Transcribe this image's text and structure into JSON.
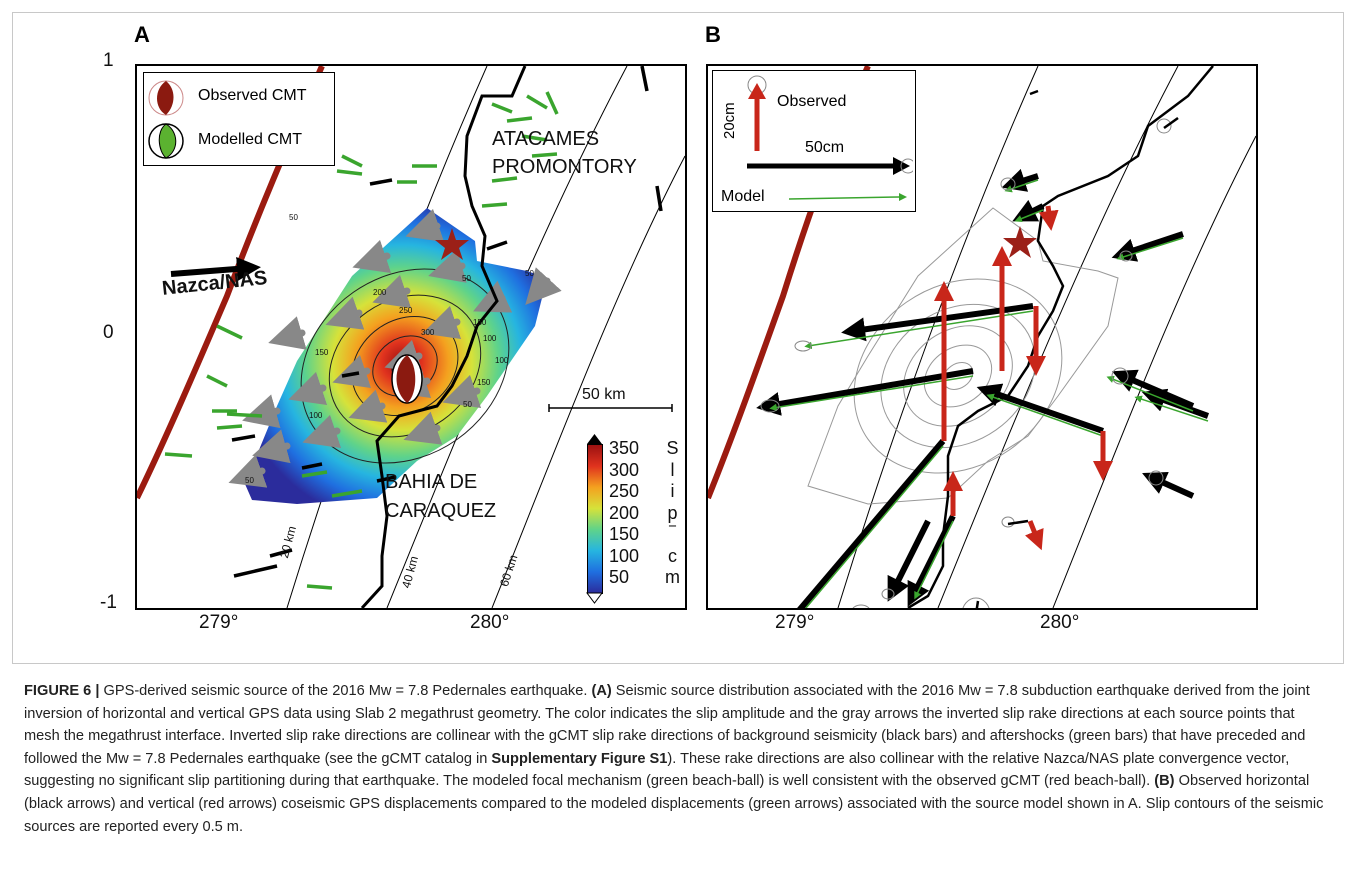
{
  "figure": {
    "panel_a": {
      "letter": "A",
      "y_ticks": [
        "1",
        "0",
        "-1"
      ],
      "x_ticks": [
        "279°",
        "280°"
      ],
      "legend": {
        "observed": "Observed CMT",
        "modelled": "Modelled CMT"
      },
      "labels": {
        "atacames_1": "ATACAMES",
        "atacames_2": "PROMONTORY",
        "nazca": "Nazca/NAS",
        "bahia_1": "BAHIA DE",
        "bahia_2": "CARAQUEZ",
        "scale": "50 km",
        "depth_20": "20 km",
        "depth_40": "40 km",
        "depth_60": "60 km"
      },
      "contour_labels": [
        "50",
        "50",
        "50",
        "50",
        "100",
        "150",
        "200",
        "250",
        "300",
        "150",
        "100",
        "150",
        "100",
        "50"
      ],
      "colorbar": {
        "ticks": [
          "350",
          "300",
          "250",
          "200",
          "150",
          "100",
          "50"
        ],
        "title_letters": [
          "S",
          "l",
          "i",
          "p",
          "",
          "c",
          "m"
        ],
        "colors": [
          "#2b2c9c",
          "#1f6fe0",
          "#26b5e0",
          "#5fd38a",
          "#d6e23a",
          "#f4a11f",
          "#e0321e",
          "#9b1111"
        ]
      }
    },
    "panel_b": {
      "letter": "B",
      "x_ticks": [
        "279°",
        "280°"
      ],
      "legend": {
        "observed": "Observed",
        "scale_20": "20cm",
        "scale_50": "50cm",
        "model": "Model"
      }
    },
    "colors": {
      "trench": "#9b1b10",
      "green_bar": "#3aa52e",
      "observed_cmt": "#8b1a10",
      "modelled_cmt": "#5bb230"
    }
  },
  "caption": {
    "label": "FIGURE 6 |",
    "p1": " GPS-derived seismic source of the 2016 Mw = 7.8 Pedernales earthquake. ",
    "a_tag": "(A)",
    "p2": " Seismic source distribution associated with the 2016 Mw = 7.8 subduction earthquake derived from the joint inversion of horizontal and vertical GPS data using Slab 2 megathrust geometry. The color indicates the slip amplitude and the gray arrows the inverted slip rake directions at each source points that mesh the megathrust interface. Inverted slip rake directions are collinear with the gCMT slip rake directions of background seismicity (black bars) and aftershocks (green bars) that have preceded and followed the Mw = 7.8 Pedernales earthquake (see the gCMT catalog in ",
    "supp": "Supplementary Figure S1",
    "p3": "). These rake directions are also collinear with the relative Nazca/NAS plate convergence vector, suggesting no significant slip partitioning during that earthquake. The modeled focal mechanism (green beach-ball) is well consistent with the observed gCMT (red beach-ball). ",
    "b_tag": "(B)",
    "p4": " Observed horizontal (black arrows) and vertical (red arrows) coseismic GPS displacements compared to the modeled displacements (green arrows) associated with the source model shown in A. Slip contours of the seismic sources are reported every 0.5 m."
  }
}
